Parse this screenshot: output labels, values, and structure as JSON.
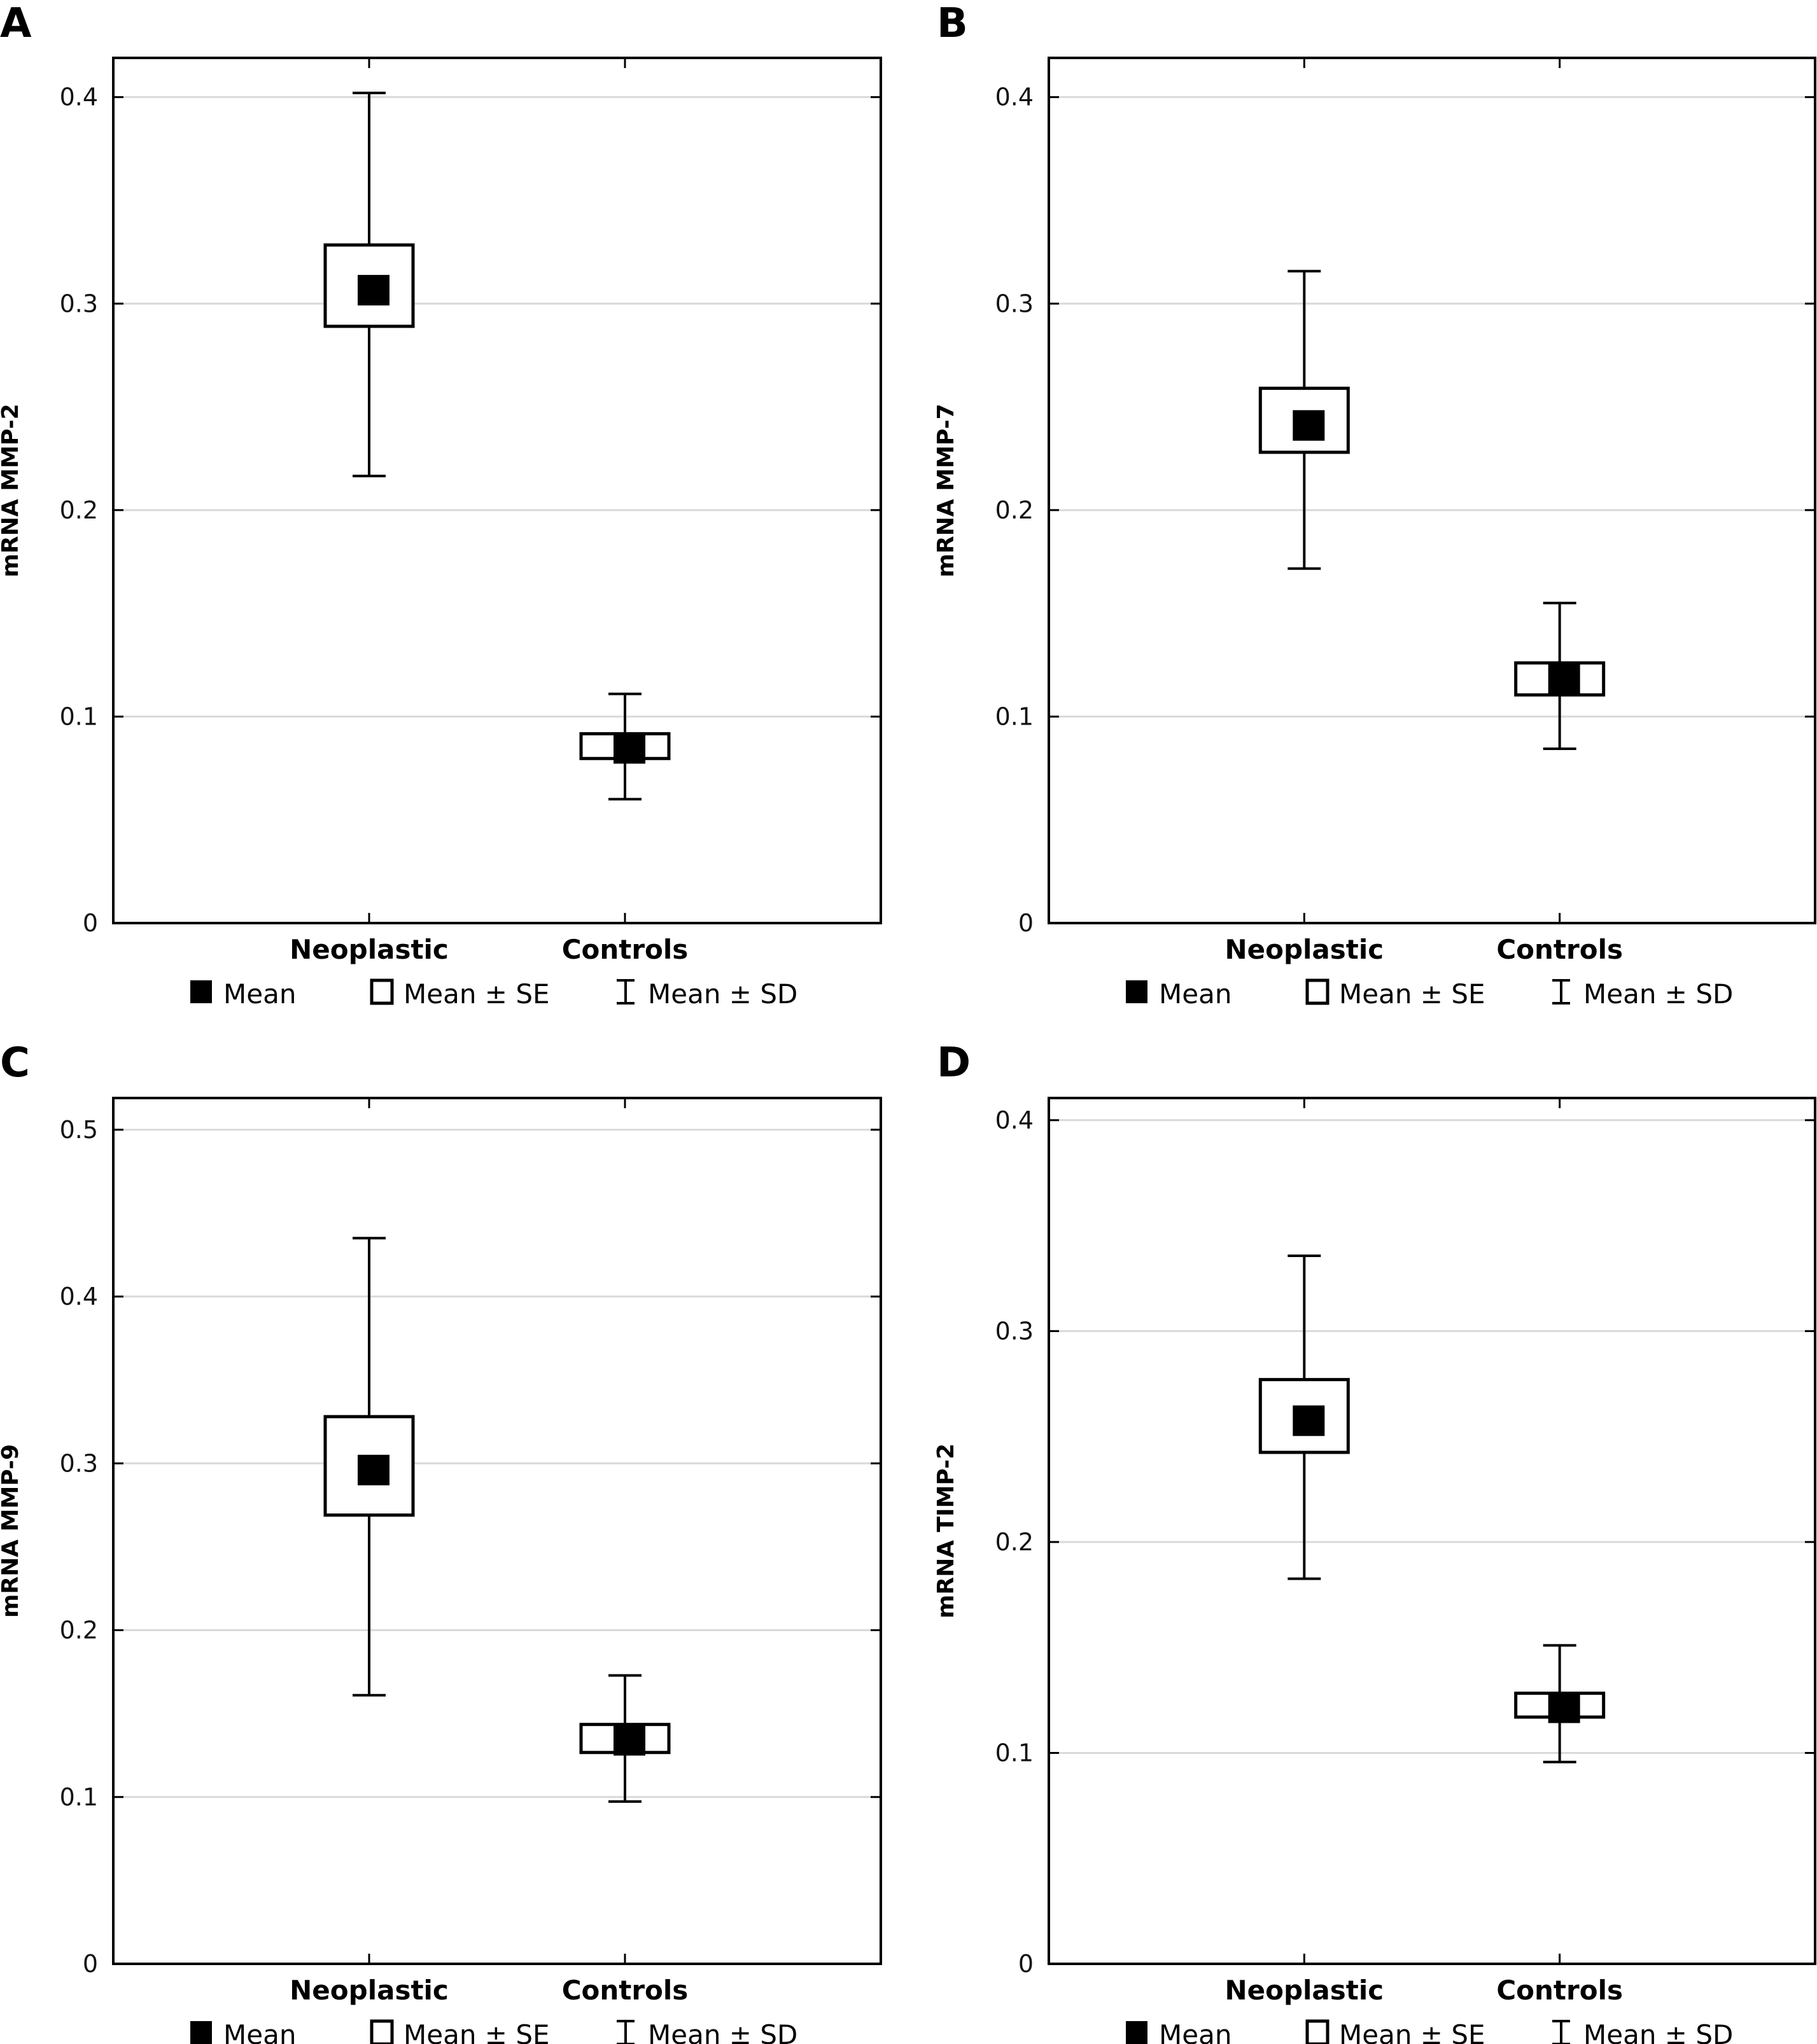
{
  "figure": {
    "legend": {
      "mean": "Mean",
      "se": "Mean ± SE",
      "sd": "Mean ± SD"
    },
    "colors": {
      "marks": "#000000",
      "grid": "#d9d9d9",
      "background": "#ffffff"
    }
  },
  "chart_data": [
    {
      "panel": "A",
      "type": "scatter",
      "subtype": "mean-se-sd whisker plot",
      "title": "",
      "xlabel": "",
      "ylabel": "mRNA MMP-2",
      "categories": [
        "Neoplastic",
        "Controls"
      ],
      "yticks": [
        "0",
        "0.1",
        "0.2",
        "0.3",
        "0.4"
      ],
      "ytick_values": [
        0,
        0.1,
        0.2,
        0.3,
        0.4
      ],
      "ylim": [
        0,
        0.419
      ],
      "grid": true,
      "legend_position": "bottom",
      "series": [
        {
          "name": "Mean",
          "values": [
            0.3065,
            0.0846
          ]
        },
        {
          "name": "Mean - SE",
          "values": [
            0.289,
            0.0797
          ]
        },
        {
          "name": "Mean + SE",
          "values": [
            0.3284,
            0.0917
          ]
        },
        {
          "name": "Mean - SD",
          "values": [
            0.2165,
            0.06
          ]
        },
        {
          "name": "Mean + SD",
          "values": [
            0.402,
            0.111
          ]
        }
      ]
    },
    {
      "panel": "B",
      "type": "scatter",
      "subtype": "mean-se-sd whisker plot",
      "title": "",
      "xlabel": "",
      "ylabel": "mRNA MMP-7",
      "categories": [
        "Neoplastic",
        "Controls"
      ],
      "yticks": [
        "0",
        "0.1",
        "0.2",
        "0.3",
        "0.4"
      ],
      "ytick_values": [
        0,
        0.1,
        0.2,
        0.3,
        0.4
      ],
      "ylim": [
        0,
        0.419
      ],
      "grid": true,
      "legend_position": "bottom",
      "series": [
        {
          "name": "Mean",
          "values": [
            0.241,
            0.118
          ]
        },
        {
          "name": "Mean - SE",
          "values": [
            0.228,
            0.1105
          ]
        },
        {
          "name": "Mean + SE",
          "values": [
            0.259,
            0.126
          ]
        },
        {
          "name": "Mean - SD",
          "values": [
            0.1717,
            0.0844
          ]
        },
        {
          "name": "Mean + SD",
          "values": [
            0.3157,
            0.155
          ]
        }
      ]
    },
    {
      "panel": "C",
      "type": "scatter",
      "subtype": "mean-se-sd whisker plot",
      "title": "",
      "xlabel": "",
      "ylabel": "mRNA MMP-9",
      "categories": [
        "Neoplastic",
        "Controls"
      ],
      "yticks": [
        "0",
        "0.1",
        "0.2",
        "0.3",
        "0.4",
        "0.5"
      ],
      "ytick_values": [
        0,
        0.1,
        0.2,
        0.3,
        0.4,
        0.5
      ],
      "ylim": [
        0,
        0.519
      ],
      "grid": true,
      "legend_position": "bottom",
      "series": [
        {
          "name": "Mean",
          "values": [
            0.296,
            0.134
          ]
        },
        {
          "name": "Mean - SE",
          "values": [
            0.269,
            0.1267
          ]
        },
        {
          "name": "Mean + SE",
          "values": [
            0.328,
            0.1435
          ]
        },
        {
          "name": "Mean - SD",
          "values": [
            0.161,
            0.0973
          ]
        },
        {
          "name": "Mean + SD",
          "values": [
            0.435,
            0.1729
          ]
        }
      ]
    },
    {
      "panel": "D",
      "type": "scatter",
      "subtype": "mean-se-sd whisker plot",
      "title": "",
      "xlabel": "",
      "ylabel": "mRNA TIMP-2",
      "categories": [
        "Neoplastic",
        "Controls"
      ],
      "yticks": [
        "0",
        "0.1",
        "0.2",
        "0.3",
        "0.4"
      ],
      "ytick_values": [
        0,
        0.1,
        0.2,
        0.3,
        0.4
      ],
      "ylim": [
        0,
        0.4105
      ],
      "grid": true,
      "legend_position": "bottom",
      "series": [
        {
          "name": "Mean",
          "values": [
            0.2575,
            0.1214
          ]
        },
        {
          "name": "Mean - SE",
          "values": [
            0.2425,
            0.117
          ]
        },
        {
          "name": "Mean + SE",
          "values": [
            0.277,
            0.1283
          ]
        },
        {
          "name": "Mean - SD",
          "values": [
            0.1826,
            0.0957
          ]
        },
        {
          "name": "Mean + SD",
          "values": [
            0.3357,
            0.151
          ]
        }
      ]
    }
  ]
}
